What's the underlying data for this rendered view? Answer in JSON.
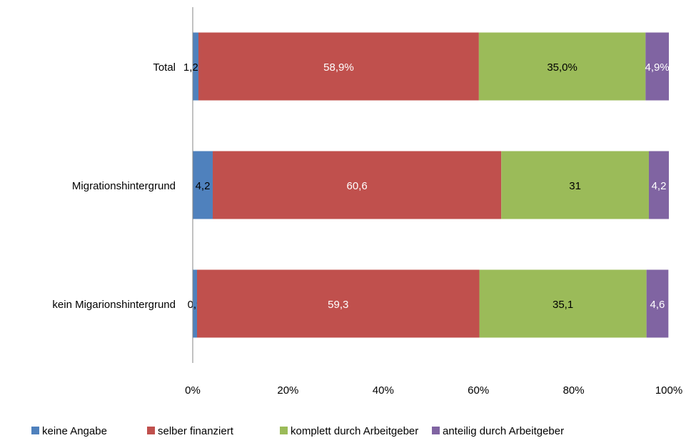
{
  "chart_data": {
    "type": "bar",
    "orientation": "horizontal",
    "stacked": true,
    "percent_stacked": true,
    "categories": [
      "Total",
      "Migrationshintergrund",
      "kein Migarionshintergrund"
    ],
    "series": [
      {
        "name": "keine Angabe",
        "color": "#4f81bd",
        "label_color": "#000000",
        "values": [
          1.2,
          4.2,
          0.9
        ],
        "labels": [
          "1,2%",
          "4,2",
          "0,9"
        ]
      },
      {
        "name": "selber finanziert",
        "color": "#c0504d",
        "label_color": "#ffffff",
        "values": [
          58.9,
          60.6,
          59.3
        ],
        "labels": [
          "58,9%",
          "60,6",
          "59,3"
        ]
      },
      {
        "name": "komplett durch Arbeitgeber",
        "color": "#9bbb59",
        "label_color": "#000000",
        "values": [
          35.0,
          31,
          35.1
        ],
        "labels": [
          "35,0%",
          "31",
          "35,1"
        ]
      },
      {
        "name": "anteilig durch Arbeitgeber",
        "color": "#8064a2",
        "label_color": "#ffffff",
        "values": [
          4.9,
          4.2,
          4.6
        ],
        "labels": [
          "4,9%",
          "4,2",
          "4,6"
        ]
      }
    ],
    "x_ticks": [
      "0%",
      "20%",
      "40%",
      "60%",
      "80%",
      "100%"
    ],
    "xlim": [
      0,
      100
    ],
    "title": "",
    "xlabel": "",
    "ylabel": "",
    "grid": false,
    "legend_position": "bottom"
  }
}
